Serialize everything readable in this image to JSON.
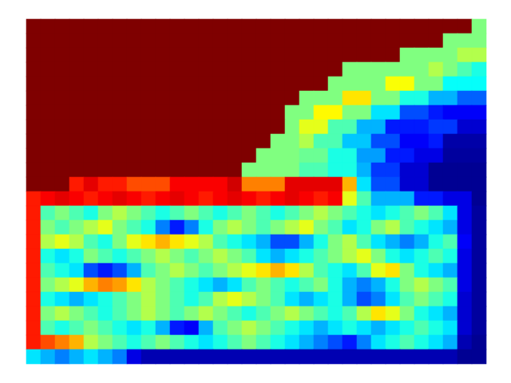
{
  "chart_data": {
    "type": "heatmap",
    "zlim": [
      0,
      1
    ],
    "tick_labels": false,
    "cells": [
      [
        1,
        1,
        1,
        1,
        1,
        1,
        1,
        1,
        1,
        1,
        1,
        1,
        1,
        1,
        1,
        1,
        1,
        1,
        1,
        1,
        1,
        1,
        1,
        1,
        1,
        1,
        1,
        1,
        1,
        1,
        1,
        0.5
      ],
      [
        1,
        1,
        1,
        1,
        1,
        1,
        1,
        1,
        1,
        1,
        1,
        1,
        1,
        1,
        1,
        1,
        1,
        1,
        1,
        1,
        1,
        1,
        1,
        1,
        1,
        1,
        1,
        1,
        1,
        0.5,
        0.5,
        0.5
      ],
      [
        1,
        1,
        1,
        1,
        1,
        1,
        1,
        1,
        1,
        1,
        1,
        1,
        1,
        1,
        1,
        1,
        1,
        1,
        1,
        1,
        1,
        1,
        1,
        1,
        1,
        1,
        0.5,
        0.5,
        0.5,
        0.5,
        0.55,
        0.55
      ],
      [
        1,
        1,
        1,
        1,
        1,
        1,
        1,
        1,
        1,
        1,
        1,
        1,
        1,
        1,
        1,
        1,
        1,
        1,
        1,
        1,
        1,
        1,
        0.5,
        0.5,
        0.5,
        0.5,
        0.5,
        0.5,
        0.55,
        0.5,
        0.45,
        0.4
      ],
      [
        1,
        1,
        1,
        1,
        1,
        1,
        1,
        1,
        1,
        1,
        1,
        1,
        1,
        1,
        1,
        1,
        1,
        1,
        1,
        1,
        1,
        0.5,
        0.5,
        0.5,
        0.5,
        0.62,
        0.62,
        0.5,
        0.5,
        0.38,
        0.38,
        0.38
      ],
      [
        1,
        1,
        1,
        1,
        1,
        1,
        1,
        1,
        1,
        1,
        1,
        1,
        1,
        1,
        1,
        1,
        1,
        1,
        1,
        0.5,
        0.5,
        0.5,
        0.65,
        0.65,
        0.5,
        0.5,
        0.4,
        0.4,
        0.3,
        0.3,
        0.22,
        0.22
      ],
      [
        1,
        1,
        1,
        1,
        1,
        1,
        1,
        1,
        1,
        1,
        1,
        1,
        1,
        1,
        1,
        1,
        1,
        1,
        0.5,
        0.5,
        0.63,
        0.63,
        0.5,
        0.5,
        0.35,
        0.35,
        0.2,
        0.2,
        0.15,
        0.12,
        0.12,
        0.12
      ],
      [
        1,
        1,
        1,
        1,
        1,
        1,
        1,
        1,
        1,
        1,
        1,
        1,
        1,
        1,
        1,
        1,
        1,
        1,
        0.5,
        0.6,
        0.6,
        0.45,
        0.45,
        0.3,
        0.3,
        0.15,
        0.15,
        0.15,
        0.18,
        0.18,
        0.08,
        0.08
      ],
      [
        1,
        1,
        1,
        1,
        1,
        1,
        1,
        1,
        1,
        1,
        1,
        1,
        1,
        1,
        1,
        1,
        1,
        0.5,
        0.5,
        0.55,
        0.45,
        0.45,
        0.32,
        0.32,
        0.2,
        0.2,
        0.12,
        0.12,
        0.15,
        0.04,
        0.04,
        0.04
      ],
      [
        1,
        1,
        1,
        1,
        1,
        1,
        1,
        1,
        1,
        1,
        1,
        1,
        1,
        1,
        1,
        1,
        0.5,
        0.5,
        0.5,
        0.48,
        0.48,
        0.4,
        0.4,
        0.28,
        0.28,
        0.15,
        0.15,
        0.1,
        0.1,
        0.03,
        0.03,
        0.03
      ],
      [
        1,
        1,
        1,
        1,
        1,
        1,
        1,
        1,
        1,
        1,
        1,
        1,
        1,
        1,
        1,
        0.5,
        0.5,
        0.5,
        0.5,
        0.45,
        0.45,
        0.4,
        0.4,
        0.3,
        0.18,
        0.18,
        0.08,
        0.08,
        0.02,
        0.02,
        0.02,
        0.02
      ],
      [
        1,
        1,
        1,
        0.85,
        0.9,
        0.85,
        0.85,
        0.8,
        0.8,
        0.8,
        0.88,
        0.88,
        0.88,
        0.88,
        0.92,
        0.75,
        0.75,
        0.75,
        0.9,
        0.9,
        0.9,
        0.9,
        0.7,
        0.35,
        0.2,
        0.2,
        0.08,
        0.08,
        0.02,
        0.02,
        0.02,
        0.02
      ],
      [
        0.85,
        0.88,
        0.9,
        0.88,
        0.85,
        0.88,
        0.9,
        0.88,
        0.85,
        0.88,
        0.9,
        0.88,
        0.85,
        0.88,
        0.9,
        0.88,
        0.85,
        0.88,
        0.9,
        0.88,
        0.85,
        0.88,
        0.6,
        0.45,
        0.3,
        0.3,
        0.3,
        0.15,
        0.15,
        0.1,
        0.1,
        0.02
      ],
      [
        0.85,
        0.45,
        0.5,
        0.45,
        0.4,
        0.5,
        0.55,
        0.5,
        0.45,
        0.4,
        0.45,
        0.5,
        0.45,
        0.4,
        0.45,
        0.5,
        0.45,
        0.4,
        0.45,
        0.5,
        0.55,
        0.5,
        0.45,
        0.4,
        0.35,
        0.4,
        0.45,
        0.5,
        0.45,
        0.35,
        0.1,
        0.03
      ],
      [
        0.85,
        0.5,
        0.45,
        0.5,
        0.55,
        0.6,
        0.5,
        0.45,
        0.4,
        0.25,
        0.15,
        0.25,
        0.4,
        0.5,
        0.55,
        0.5,
        0.45,
        0.5,
        0.55,
        0.6,
        0.5,
        0.45,
        0.35,
        0.4,
        0.5,
        0.55,
        0.45,
        0.4,
        0.35,
        0.3,
        0.1,
        0.03
      ],
      [
        0.85,
        0.55,
        0.6,
        0.55,
        0.45,
        0.4,
        0.5,
        0.6,
        0.65,
        0.7,
        0.65,
        0.6,
        0.55,
        0.45,
        0.4,
        0.35,
        0.3,
        0.2,
        0.2,
        0.3,
        0.4,
        0.5,
        0.55,
        0.45,
        0.35,
        0.3,
        0.25,
        0.3,
        0.4,
        0.45,
        0.12,
        0.03
      ],
      [
        0.85,
        0.4,
        0.35,
        0.4,
        0.5,
        0.45,
        0.4,
        0.45,
        0.5,
        0.55,
        0.5,
        0.45,
        0.5,
        0.55,
        0.5,
        0.45,
        0.35,
        0.3,
        0.35,
        0.4,
        0.45,
        0.5,
        0.55,
        0.6,
        0.5,
        0.4,
        0.35,
        0.4,
        0.45,
        0.4,
        0.1,
        0.03
      ],
      [
        0.85,
        0.45,
        0.4,
        0.35,
        0.2,
        0.15,
        0.2,
        0.3,
        0.45,
        0.5,
        0.55,
        0.5,
        0.45,
        0.5,
        0.55,
        0.6,
        0.65,
        0.7,
        0.65,
        0.55,
        0.45,
        0.4,
        0.35,
        0.45,
        0.6,
        0.65,
        0.5,
        0.4,
        0.35,
        0.3,
        0.1,
        0.03
      ],
      [
        0.85,
        0.5,
        0.55,
        0.6,
        0.7,
        0.75,
        0.72,
        0.65,
        0.55,
        0.5,
        0.45,
        0.4,
        0.35,
        0.3,
        0.35,
        0.45,
        0.5,
        0.45,
        0.4,
        0.45,
        0.5,
        0.4,
        0.3,
        0.25,
        0.3,
        0.4,
        0.5,
        0.55,
        0.5,
        0.45,
        0.1,
        0.03
      ],
      [
        0.85,
        0.4,
        0.35,
        0.3,
        0.35,
        0.4,
        0.45,
        0.5,
        0.55,
        0.5,
        0.45,
        0.4,
        0.45,
        0.55,
        0.6,
        0.55,
        0.5,
        0.45,
        0.35,
        0.3,
        0.35,
        0.4,
        0.3,
        0.2,
        0.25,
        0.35,
        0.45,
        0.5,
        0.45,
        0.4,
        0.08,
        0.03
      ],
      [
        0.85,
        0.5,
        0.55,
        0.5,
        0.45,
        0.4,
        0.45,
        0.5,
        0.55,
        0.5,
        0.45,
        0.5,
        0.55,
        0.5,
        0.45,
        0.4,
        0.45,
        0.5,
        0.55,
        0.5,
        0.45,
        0.4,
        0.45,
        0.55,
        0.65,
        0.6,
        0.5,
        0.4,
        0.35,
        0.3,
        0.08,
        0.03
      ],
      [
        0.85,
        0.45,
        0.4,
        0.45,
        0.5,
        0.45,
        0.4,
        0.35,
        0.4,
        0.3,
        0.15,
        0.12,
        0.3,
        0.45,
        0.5,
        0.55,
        0.5,
        0.45,
        0.4,
        0.35,
        0.3,
        0.35,
        0.4,
        0.35,
        0.3,
        0.35,
        0.4,
        0.45,
        0.4,
        0.35,
        0.08,
        0.03
      ],
      [
        0.85,
        0.8,
        0.75,
        0.7,
        0.55,
        0.5,
        0.45,
        0.4,
        0.45,
        0.5,
        0.45,
        0.4,
        0.35,
        0.4,
        0.45,
        0.5,
        0.45,
        0.4,
        0.35,
        0.3,
        0.25,
        0.2,
        0.15,
        0.25,
        0.35,
        0.4,
        0.45,
        0.4,
        0.35,
        0.3,
        0.05,
        0.02
      ],
      [
        0.35,
        0.3,
        0.25,
        0.3,
        0.35,
        0.3,
        0.25,
        0.1,
        0.05,
        0.05,
        0.05,
        0.05,
        0.05,
        0.05,
        0.05,
        0.05,
        0.05,
        0.05,
        0.05,
        0.05,
        0.05,
        0.05,
        0.05,
        0.05,
        0.05,
        0.05,
        0.05,
        0.05,
        0.05,
        0.05,
        0.02,
        0.02
      ]
    ]
  }
}
